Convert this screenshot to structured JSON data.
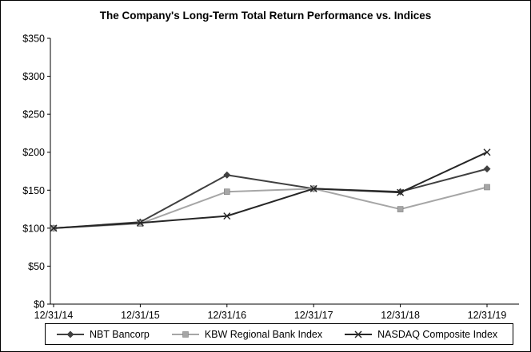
{
  "chart": {
    "background": "#ffffff",
    "border_color": "#000000",
    "axis_color": "#000000",
    "text_color": "#000000"
  },
  "chart_data": {
    "type": "line",
    "title": "The Company's Long-Term Total Return Performance vs. Indices",
    "categories": [
      "12/31/14",
      "12/31/15",
      "12/31/16",
      "12/31/17",
      "12/31/18",
      "12/31/19"
    ],
    "series": [
      {
        "name": "NBT Bancorp",
        "marker": "diamond",
        "color": "#404040",
        "values": [
          100,
          108,
          170,
          152,
          148,
          178
        ]
      },
      {
        "name": "KBW Regional Bank Index",
        "marker": "square",
        "color": "#a6a6a6",
        "values": [
          100,
          106,
          148,
          152,
          125,
          154
        ]
      },
      {
        "name": "NASDAQ Composite Index",
        "marker": "x",
        "color": "#262626",
        "values": [
          100,
          107,
          116,
          152,
          147,
          200
        ]
      }
    ],
    "xlabel": "",
    "ylabel": "",
    "ylim": [
      0,
      350
    ],
    "ytick_step": 50,
    "ytick_labels": [
      "$0",
      "$50",
      "$100",
      "$150",
      "$200",
      "$250",
      "$300",
      "$350"
    ],
    "grid": false,
    "legend_position": "bottom"
  }
}
